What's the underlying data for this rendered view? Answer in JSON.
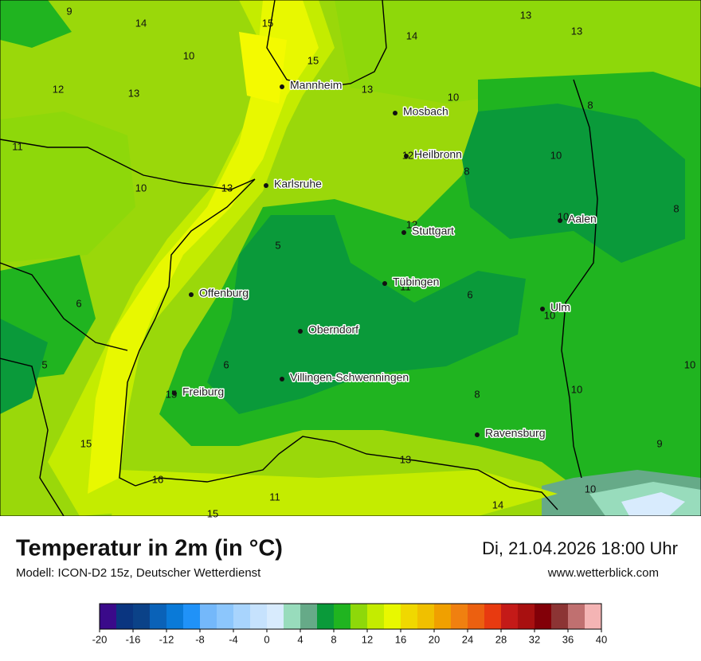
{
  "header": {
    "title": "Temperatur in 2m (in °C)",
    "subtitle": "Modell: ICON-D2 15z, Deutscher Wetterdienst",
    "datetime": "Di, 21.04.2026 18:00 Uhr",
    "website": "www.wetterblick.com"
  },
  "map": {
    "cities": [
      "Mannheim",
      "Mosbach",
      "Heilbronn",
      "Karlsruhe",
      "Aalen",
      "Stuttgart",
      "Tübingen",
      "Offenburg",
      "Ulm",
      "Oberndorf",
      "Villingen-Schwenningen",
      "Freiburg",
      "Ravensburg"
    ],
    "temperature_labels": [
      9,
      14,
      15,
      13,
      14,
      13,
      10,
      15,
      12,
      13,
      13,
      10,
      8,
      11,
      12,
      10,
      8,
      10,
      13,
      10,
      8,
      12,
      5,
      11,
      6,
      6,
      10,
      5,
      6,
      10,
      15,
      8,
      10,
      15,
      9,
      13,
      16,
      10,
      11,
      14,
      15
    ]
  },
  "colorbar": {
    "colors": [
      "#3a0a8a",
      "#0a3580",
      "#0b4288",
      "#0a62b8",
      "#0a7ad8",
      "#2092f8",
      "#74b8fa",
      "#8cc6fc",
      "#a8d4fd",
      "#c6e2fd",
      "#d8ebfd",
      "#98dcbc",
      "#66aa88",
      "#0a9a3a",
      "#20b420",
      "#8ed80a",
      "#c4ec00",
      "#e8f800",
      "#f0d800",
      "#f0c000",
      "#f0a000",
      "#f08010",
      "#ec6010",
      "#e83a10",
      "#c41a18",
      "#a81010",
      "#820008",
      "#8c3434",
      "#c07070",
      "#f4b4b4"
    ],
    "ticks": [
      -20,
      -16,
      -12,
      -8,
      -4,
      0,
      4,
      8,
      12,
      16,
      20,
      24,
      28,
      32,
      36,
      40
    ]
  }
}
